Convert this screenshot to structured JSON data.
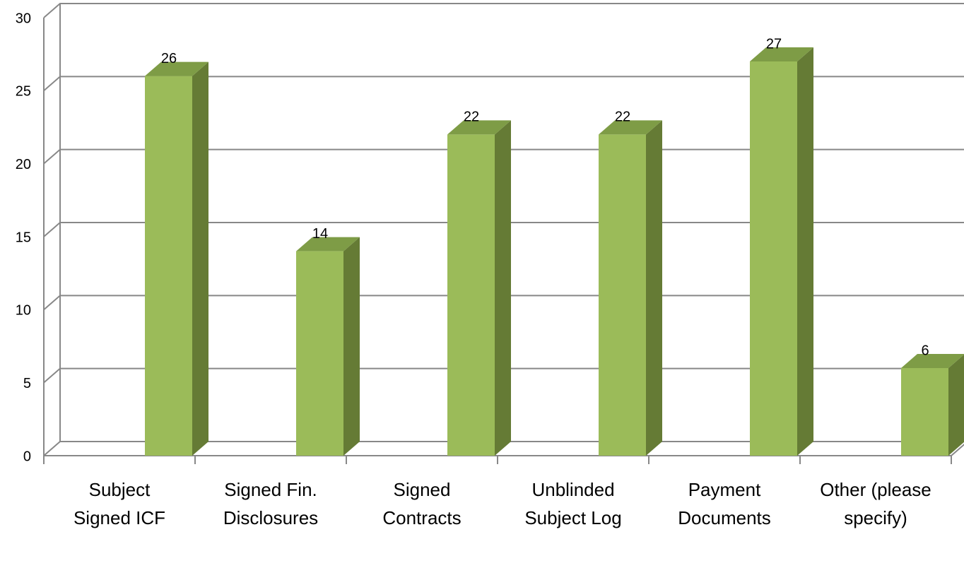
{
  "chart_data": {
    "type": "bar3d",
    "categories": [
      "Subject Signed ICF",
      "Signed Fin. Disclosures",
      "Signed Contracts",
      "Unblinded Subject Log",
      "Payment Documents",
      "Other (please specify)"
    ],
    "values": [
      26,
      14,
      22,
      22,
      27,
      6
    ],
    "color": "#9bbb59",
    "ylim": [
      0,
      30
    ],
    "yticks": [
      0,
      5,
      10,
      15,
      20,
      25,
      30
    ],
    "grid": true
  }
}
